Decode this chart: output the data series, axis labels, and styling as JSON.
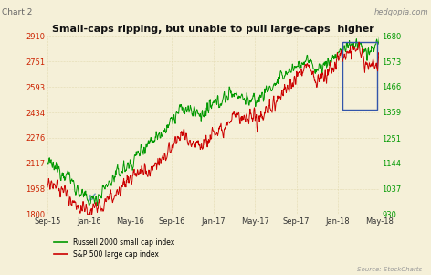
{
  "title": "Small-caps ripping, but unable to pull large-caps  higher",
  "chart_label": "Chart 2",
  "watermark": "hedgopia.com",
  "source": "Source: StockCharts",
  "background_color": "#f5f0d8",
  "grid_color": "#d4c890",
  "left_yticks": [
    1800,
    1958,
    2117,
    2276,
    2434,
    2593,
    2751,
    2910
  ],
  "right_yticks": [
    930,
    1037,
    1144,
    1251,
    1359,
    1466,
    1573,
    1680
  ],
  "xtick_labels": [
    "Sep-15",
    "Jan-16",
    "May-16",
    "Sep-16",
    "Jan-17",
    "May-17",
    "Sep-17",
    "Jan-18",
    "May-18"
  ],
  "left_color": "#009900",
  "right_color": "#cc0000",
  "arrow_color": "#6699bb",
  "legend1": "Russell 2000 small cap index",
  "legend2": "S&P 500 large cap index",
  "ylim_left": [
    1800,
    2910
  ],
  "ylim_right": [
    930,
    1680
  ],
  "left_tick_color": "#cc2200",
  "right_tick_color": "#009900"
}
